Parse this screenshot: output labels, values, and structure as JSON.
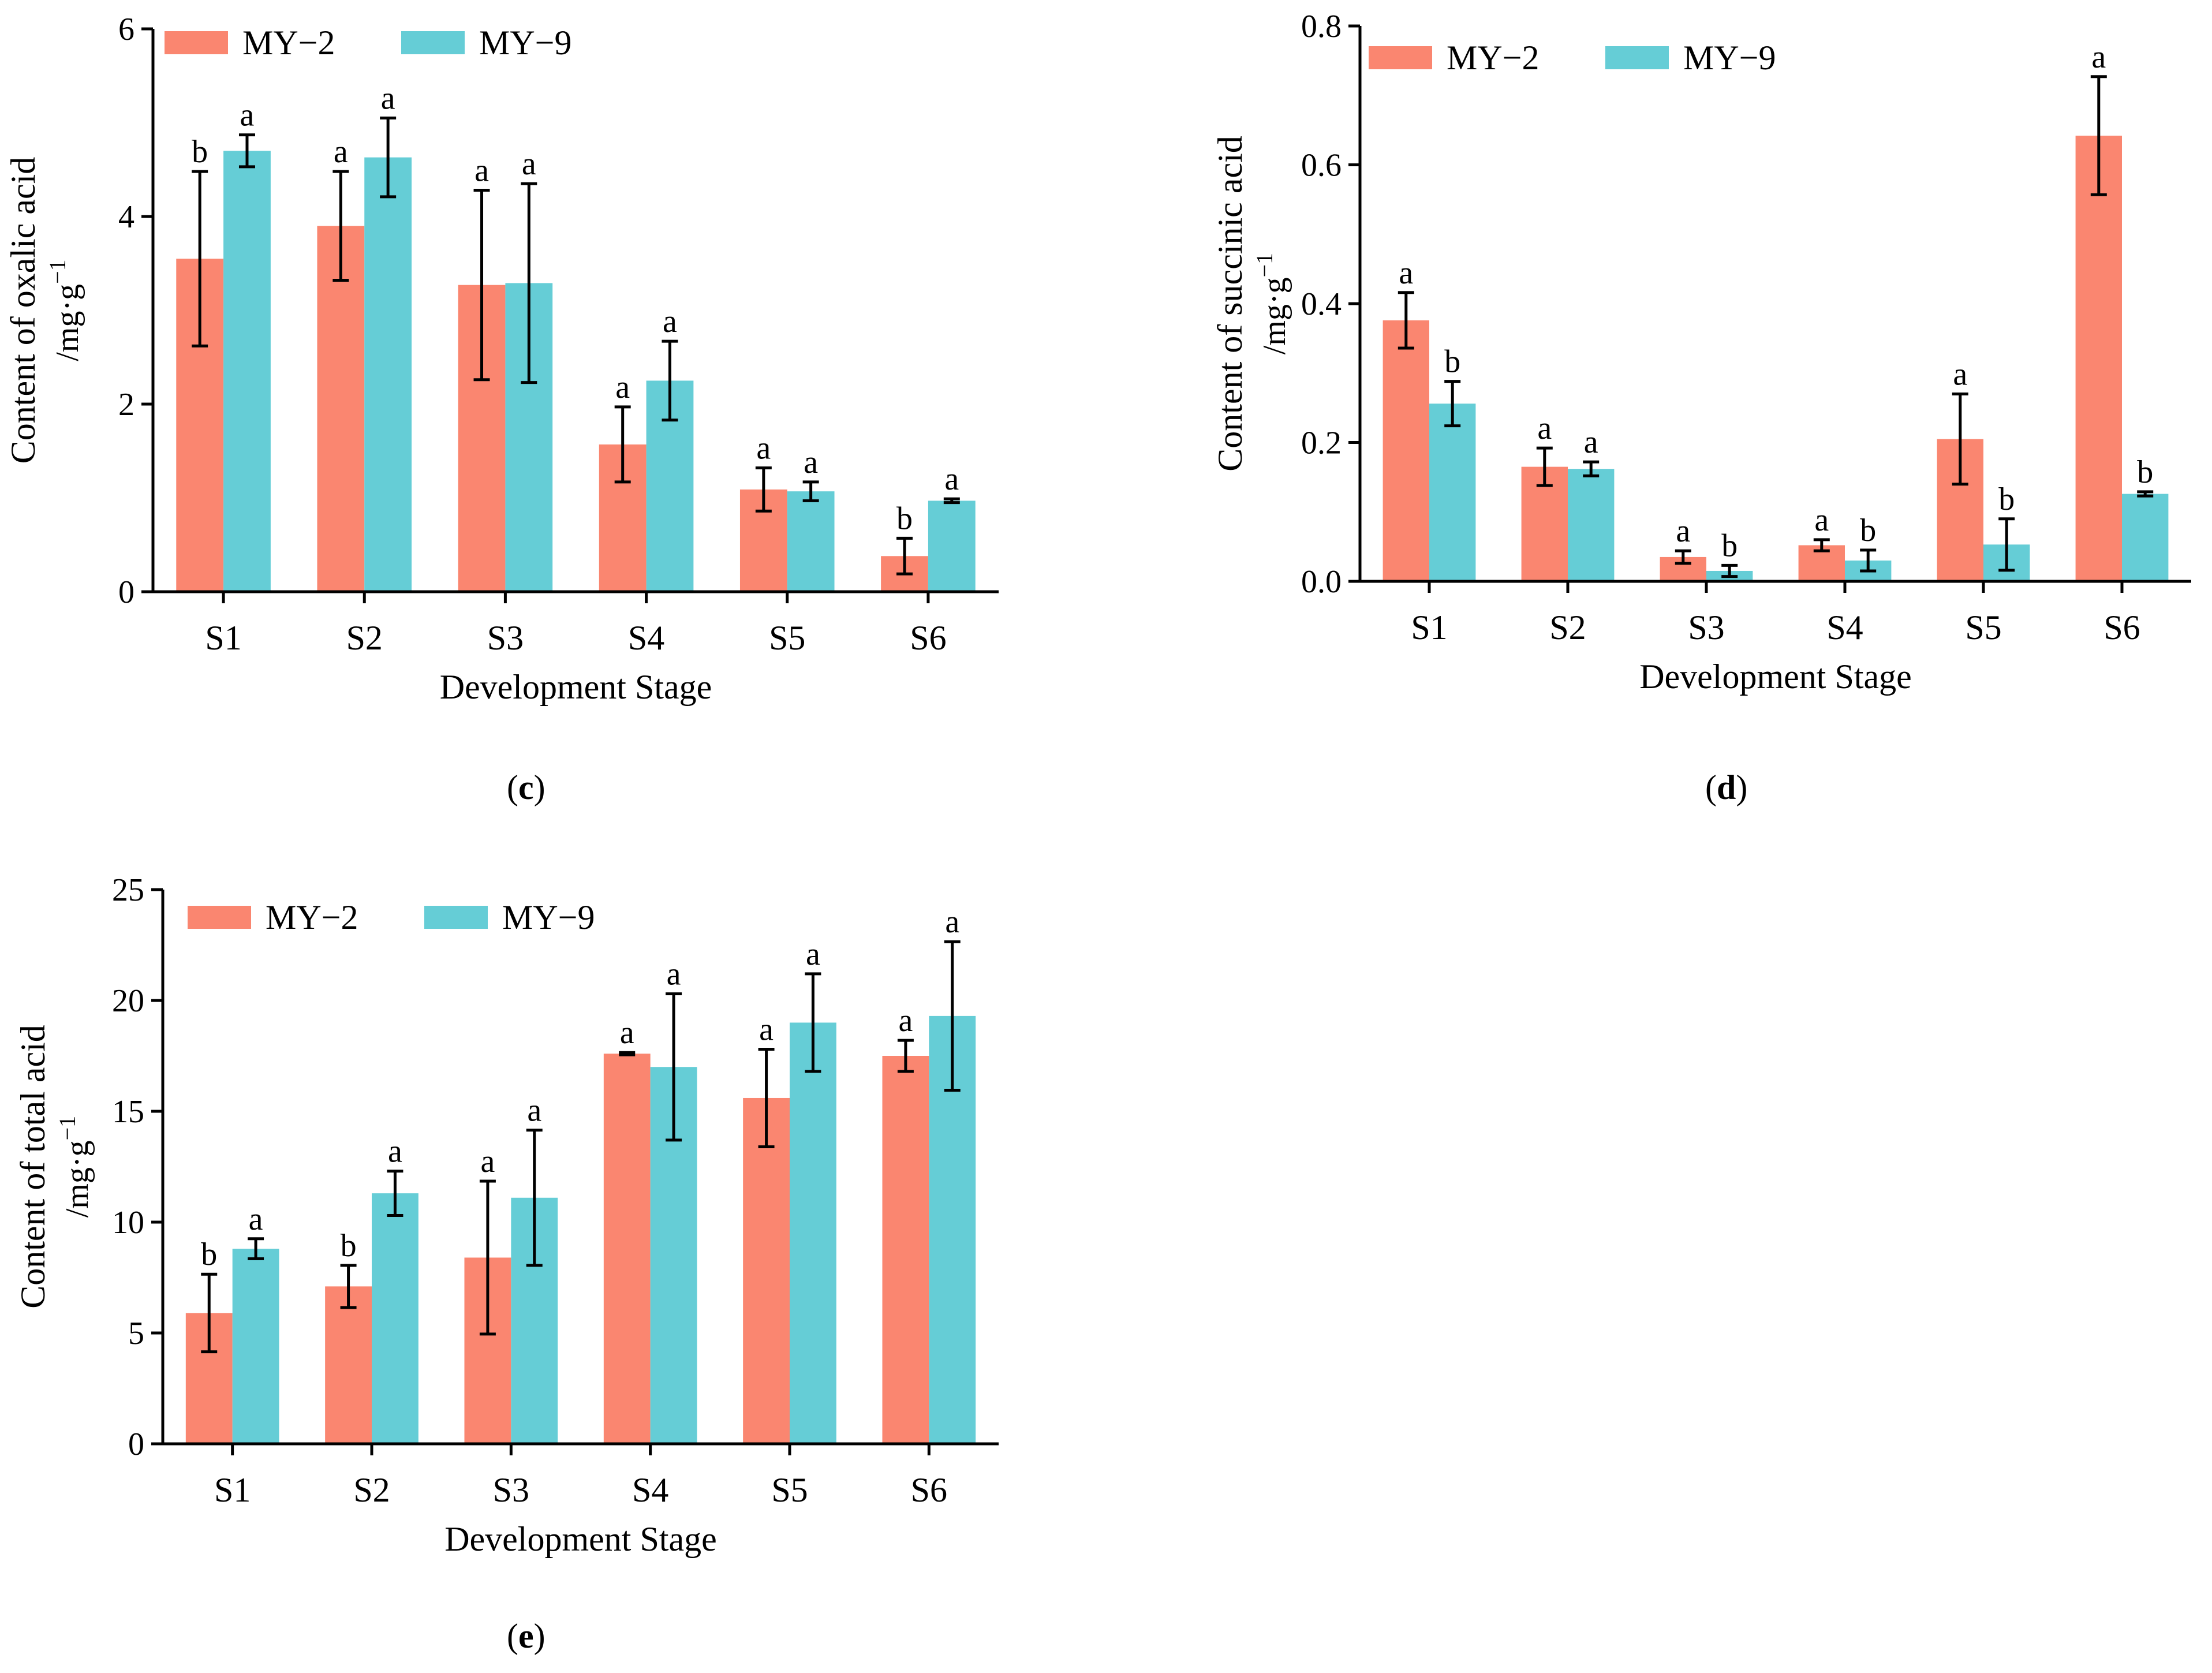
{
  "colors": {
    "MY-2": "#fa8670",
    "MY-9": "#65cdd6",
    "axis": "#000000"
  },
  "chart_data": [
    {
      "id": "c",
      "type": "bar",
      "panel_label": "c",
      "title": "",
      "xlabel": "Development Stage",
      "ylabel_line1": "Content of oxalic acid",
      "ylabel_line2": "/mg·g",
      "ylabel_exp": "−1",
      "ylim": [
        0,
        6
      ],
      "yticks": [
        0,
        2,
        4,
        6
      ],
      "ytick_labels": [
        "0",
        "2",
        "4",
        "6"
      ],
      "categories": [
        "S1",
        "S2",
        "S3",
        "S4",
        "S5",
        "S6"
      ],
      "legend_position": "top-left",
      "series": [
        {
          "name": "MY−2",
          "color_key": "MY-2",
          "values": [
            3.55,
            3.9,
            3.27,
            1.57,
            1.09,
            0.38
          ],
          "errors": [
            0.93,
            0.58,
            1.01,
            0.4,
            0.23,
            0.19
          ],
          "letters": [
            "b",
            "a",
            "a",
            "a",
            "a",
            "b"
          ]
        },
        {
          "name": "MY−9",
          "color_key": "MY-9",
          "values": [
            4.7,
            4.63,
            3.29,
            2.25,
            1.07,
            0.97
          ],
          "errors": [
            0.17,
            0.42,
            1.06,
            0.42,
            0.1,
            0.02
          ],
          "letters": [
            "a",
            "a",
            "a",
            "a",
            "a",
            "a"
          ]
        }
      ]
    },
    {
      "id": "d",
      "type": "bar",
      "panel_label": "d",
      "title": "",
      "xlabel": "Development Stage",
      "ylabel_line1": "Content of succinic acid",
      "ylabel_line2": "/mg·g",
      "ylabel_exp": "−1",
      "ylim": [
        0,
        0.8
      ],
      "yticks": [
        0,
        0.2,
        0.4,
        0.6,
        0.8
      ],
      "ytick_labels": [
        "0.0",
        "0.2",
        "0.4",
        "0.6",
        "0.8"
      ],
      "categories": [
        "S1",
        "S2",
        "S3",
        "S4",
        "S5",
        "S6"
      ],
      "legend_position": "top-left",
      "series": [
        {
          "name": "MY−2",
          "color_key": "MY-2",
          "values": [
            0.376,
            0.165,
            0.035,
            0.052,
            0.205,
            0.642
          ],
          "errors": [
            0.04,
            0.027,
            0.009,
            0.008,
            0.065,
            0.085
          ],
          "letters": [
            "a",
            "a",
            "a",
            "a",
            "a",
            "a"
          ]
        },
        {
          "name": "MY−9",
          "color_key": "MY-9",
          "values": [
            0.256,
            0.162,
            0.015,
            0.03,
            0.053,
            0.126
          ],
          "errors": [
            0.032,
            0.01,
            0.008,
            0.015,
            0.037,
            0.003
          ],
          "letters": [
            "b",
            "a",
            "b",
            "b",
            "b",
            "b"
          ]
        }
      ]
    },
    {
      "id": "e",
      "type": "bar",
      "panel_label": "e",
      "title": "",
      "xlabel": "Development Stage",
      "ylabel_line1": "Content of total acid",
      "ylabel_line2": "/mg·g",
      "ylabel_exp": "−1",
      "ylim": [
        0,
        25
      ],
      "yticks": [
        0,
        5,
        10,
        15,
        20,
        25
      ],
      "ytick_labels": [
        "0",
        "5",
        "10",
        "15",
        "20",
        "25"
      ],
      "categories": [
        "S1",
        "S2",
        "S3",
        "S4",
        "S5",
        "S6"
      ],
      "legend_position": "top-left",
      "series": [
        {
          "name": "MY−2",
          "color_key": "MY-2",
          "values": [
            5.9,
            7.1,
            8.4,
            17.6,
            15.6,
            17.5
          ],
          "errors": [
            1.75,
            0.95,
            3.45,
            0.05,
            2.2,
            0.7
          ],
          "letters": [
            "b",
            "b",
            "a",
            "a",
            "a",
            "a"
          ]
        },
        {
          "name": "MY−9",
          "color_key": "MY-9",
          "values": [
            8.8,
            11.3,
            11.1,
            17.0,
            19.0,
            19.3
          ],
          "errors": [
            0.45,
            1.0,
            3.05,
            3.3,
            2.2,
            3.35
          ],
          "letters": [
            "a",
            "a",
            "a",
            "a",
            "a",
            "a"
          ]
        }
      ]
    }
  ]
}
